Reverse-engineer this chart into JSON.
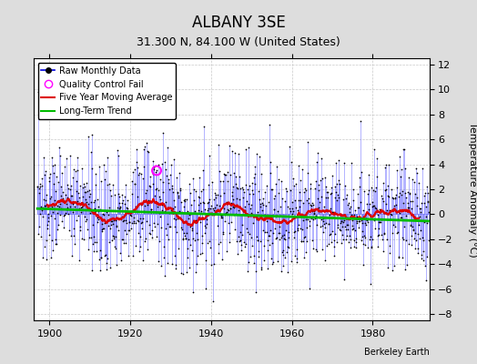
{
  "title": "ALBANY 3SE",
  "subtitle": "31.300 N, 84.100 W (United States)",
  "ylabel": "Temperature Anomaly (°C)",
  "credit": "Berkeley Earth",
  "year_start": 1897,
  "year_end": 1993,
  "ylim": [
    -8.5,
    12.5
  ],
  "yticks": [
    -8,
    -6,
    -4,
    -2,
    0,
    2,
    4,
    6,
    8,
    10,
    12
  ],
  "xticks": [
    1900,
    1920,
    1940,
    1960,
    1980
  ],
  "raw_color": "#0000dd",
  "raw_line_color": "#6666ff",
  "ma_color": "#dd0000",
  "trend_color": "#00bb00",
  "qc_color": "#ff00ff",
  "background_color": "#dddddd",
  "plot_bg_color": "#ffffff",
  "grid_color": "#bbbbbb",
  "qc_year": 1926.5,
  "qc_val": 3.5,
  "seed": 137
}
